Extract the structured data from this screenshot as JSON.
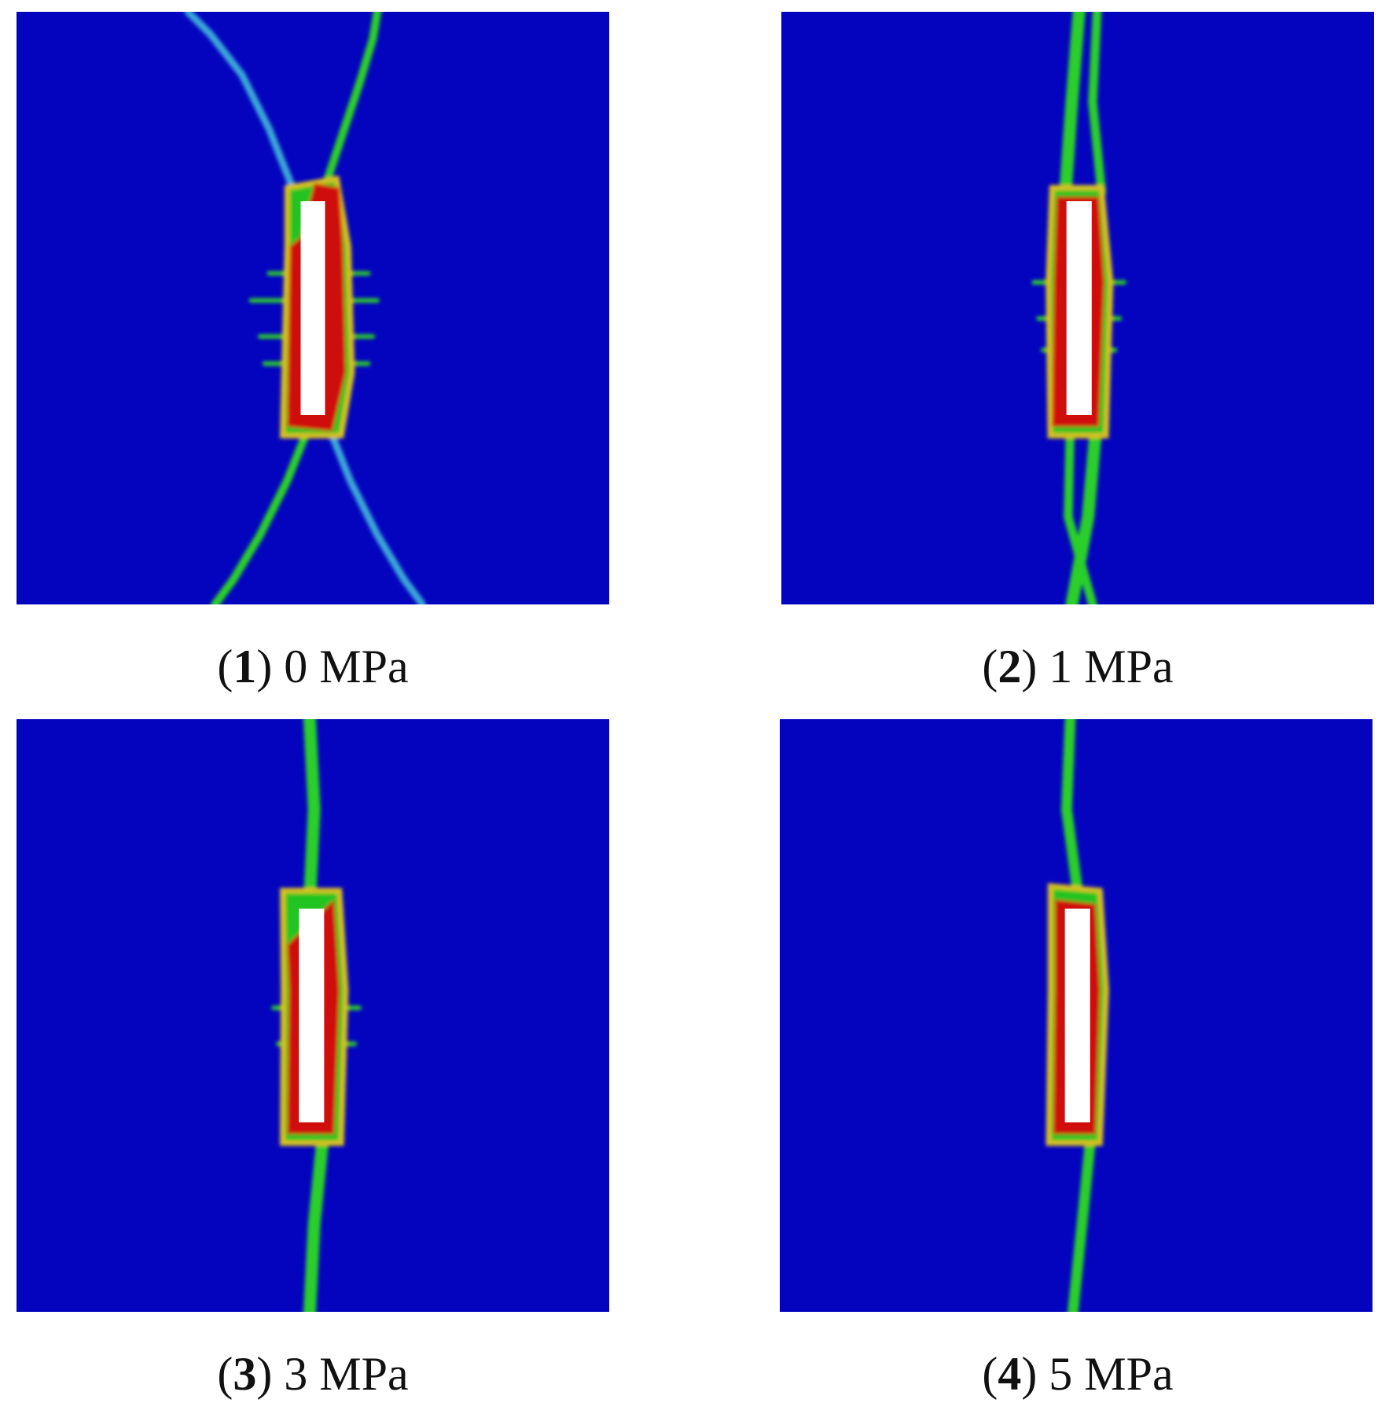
{
  "panels": [
    {
      "open": "(",
      "number": "1",
      "rest": ") 0 MPa"
    },
    {
      "open": "(",
      "number": "2",
      "rest": ") 1 MPa"
    },
    {
      "open": "(",
      "number": "3",
      "rest": ") 3 MPa"
    },
    {
      "open": "(",
      "number": "4",
      "rest": ") 5 MPa"
    }
  ]
}
